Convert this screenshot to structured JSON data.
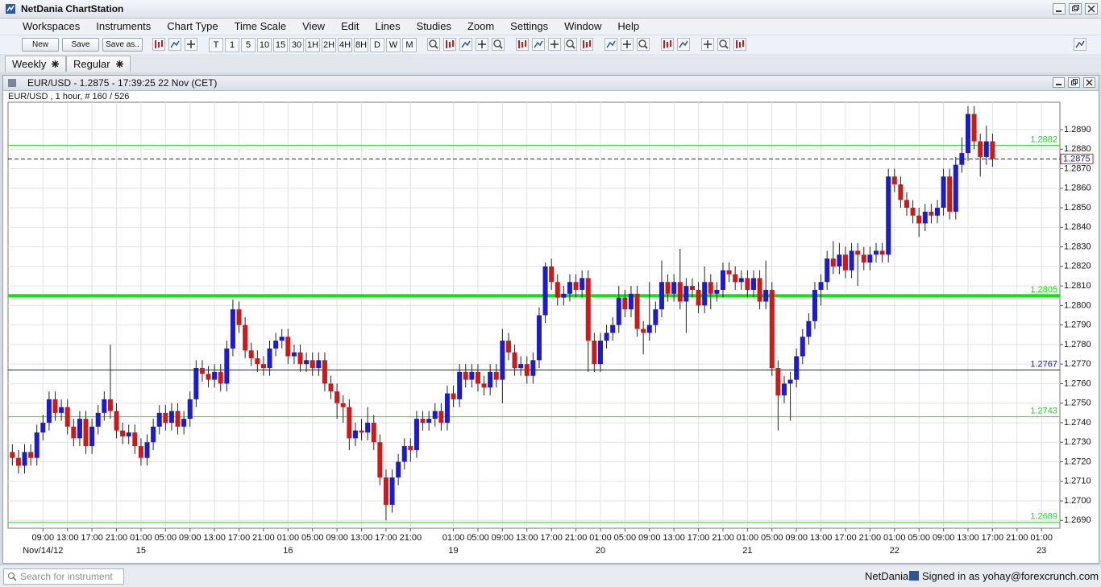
{
  "window": {
    "title": "NetDania ChartStation"
  },
  "menu": [
    "Workspaces",
    "Instruments",
    "Chart Type",
    "Time Scale",
    "View",
    "Edit",
    "Lines",
    "Studies",
    "Zoom",
    "Settings",
    "Window",
    "Help"
  ],
  "toolbar": {
    "buttons": [
      "New",
      "Save",
      "Save as.."
    ],
    "periods": [
      "T",
      "1",
      "5",
      "10",
      "15",
      "30",
      "1H",
      "2H",
      "4H",
      "8H",
      "D",
      "W",
      "M"
    ]
  },
  "tabs": [
    "Weekly",
    "Regular"
  ],
  "chart_window": {
    "title": "EUR/USD - 1.2875 - 17:39:25  22 Nov (CET)",
    "info": "EUR/USD , 1 hour, # 160 / 526"
  },
  "chart_data": {
    "type": "candlestick",
    "up_color": "#1c1cc8",
    "down_color": "#c81c1c",
    "grid": true,
    "open": [
      1.2725,
      1.2722,
      1.2718,
      1.2725,
      1.2722,
      1.2735,
      1.274,
      1.2752,
      1.2745,
      1.2748,
      1.2738,
      1.2732,
      1.2742,
      1.2728,
      1.2738,
      1.2745,
      1.2752,
      1.2746,
      1.2736,
      1.2733,
      1.2735,
      1.2728,
      1.2722,
      1.273,
      1.2738,
      1.2745,
      1.274,
      1.2746,
      1.2738,
      1.2742,
      1.2752,
      1.2768,
      1.2765,
      1.2762,
      1.2766,
      1.276,
      1.2778,
      1.2798,
      1.279,
      1.2777,
      1.2773,
      1.277,
      1.2768,
      1.2778,
      1.2782,
      1.2784,
      1.2774,
      1.2776,
      1.277,
      1.2772,
      1.2768,
      1.2772,
      1.276,
      1.2756,
      1.275,
      1.2748,
      1.2732,
      1.2736,
      1.2735,
      1.274,
      1.273,
      1.2712,
      1.2698,
      1.2712,
      1.272,
      1.2728,
      1.2726,
      1.2742,
      1.274,
      1.2742,
      1.2746,
      1.274,
      1.2755,
      1.2752,
      1.2766,
      1.2762,
      1.2766,
      1.276,
      1.2758,
      1.2766,
      1.2762,
      1.2782,
      1.2776,
      1.2768,
      1.277,
      1.2764,
      1.2772,
      1.2795,
      1.282,
      1.2812,
      1.2804,
      1.2806,
      1.2812,
      1.2808,
      1.2814,
      1.2782,
      1.277,
      1.2782,
      1.2786,
      1.279,
      1.2804,
      1.2798,
      1.2806,
      1.2788,
      1.2786,
      1.279,
      1.2798,
      1.2812,
      1.2806,
      1.2812,
      1.2802,
      1.281,
      1.2808,
      1.28,
      1.2812,
      1.2806,
      1.2808,
      1.2818,
      1.2816,
      1.2812,
      1.2814,
      1.2808,
      1.2814,
      1.2802,
      1.2808,
      1.2768,
      1.2754,
      1.276,
      1.2762,
      1.2774,
      1.2784,
      1.2792,
      1.2808,
      1.2812,
      1.2824,
      1.282,
      1.2826,
      1.2818,
      1.2828,
      1.2826,
      1.2822,
      1.2826,
      1.2828,
      1.2826,
      1.2866,
      1.2862,
      1.2854,
      1.285,
      1.2846,
      1.2842,
      1.2848,
      1.2846,
      1.285,
      1.2866,
      1.2848,
      1.2872,
      1.2878,
      1.2898,
      1.2884,
      1.2876,
      1.2884
    ],
    "high": [
      1.2729,
      1.2726,
      1.2729,
      1.2729,
      1.2739,
      1.2744,
      1.2756,
      1.2756,
      1.2752,
      1.2752,
      1.2742,
      1.2746,
      1.2746,
      1.2742,
      1.2749,
      1.2756,
      1.278,
      1.275,
      1.274,
      1.2739,
      1.2739,
      1.2732,
      1.2734,
      1.2742,
      1.2749,
      1.2749,
      1.275,
      1.275,
      1.2746,
      1.2756,
      1.2772,
      1.2772,
      1.2769,
      1.277,
      1.277,
      1.2782,
      1.2803,
      1.2802,
      1.2794,
      1.2781,
      1.2777,
      1.2774,
      1.2782,
      1.2786,
      1.2788,
      1.2788,
      1.278,
      1.278,
      1.2776,
      1.2776,
      1.2776,
      1.2776,
      1.2764,
      1.276,
      1.2754,
      1.2752,
      1.274,
      1.2742,
      1.2748,
      1.2744,
      1.2734,
      1.2716,
      1.2716,
      1.2724,
      1.2732,
      1.2732,
      1.2746,
      1.2746,
      1.2746,
      1.275,
      1.275,
      1.2759,
      1.2759,
      1.277,
      1.277,
      1.277,
      1.277,
      1.2764,
      1.277,
      1.277,
      1.2788,
      1.2786,
      1.278,
      1.2774,
      1.2774,
      1.2776,
      1.2799,
      1.2822,
      1.2824,
      1.2816,
      1.281,
      1.2816,
      1.2816,
      1.2818,
      1.2818,
      1.2786,
      1.2786,
      1.279,
      1.2794,
      1.281,
      1.2808,
      1.281,
      1.281,
      1.2792,
      1.2812,
      1.2802,
      1.2823,
      1.2816,
      1.2816,
      1.2829,
      1.2814,
      1.2814,
      1.2812,
      1.282,
      1.2816,
      1.2812,
      1.2822,
      1.2822,
      1.282,
      1.2818,
      1.2818,
      1.2818,
      1.2818,
      1.2823,
      1.2812,
      1.2772,
      1.2764,
      1.2766,
      1.2778,
      1.2788,
      1.2796,
      1.2812,
      1.2816,
      1.2828,
      1.2833,
      1.2832,
      1.283,
      1.2832,
      1.2832,
      1.283,
      1.283,
      1.2832,
      1.2832,
      1.287,
      1.287,
      1.2866,
      1.2858,
      1.2854,
      1.285,
      1.2852,
      1.2852,
      1.2854,
      1.287,
      1.287,
      1.2876,
      1.2886,
      1.2902,
      1.2902,
      1.2888,
      1.2892,
      1.2888
    ],
    "low": [
      1.2718,
      1.2714,
      1.2714,
      1.2718,
      1.2718,
      1.2731,
      1.2736,
      1.2741,
      1.2741,
      1.2734,
      1.2728,
      1.2728,
      1.2724,
      1.2724,
      1.2734,
      1.2741,
      1.2742,
      1.2732,
      1.2729,
      1.2729,
      1.2724,
      1.2718,
      1.2718,
      1.2726,
      1.2734,
      1.2736,
      1.2736,
      1.2734,
      1.2734,
      1.2738,
      1.2748,
      1.2761,
      1.2758,
      1.2758,
      1.2756,
      1.2756,
      1.2774,
      1.2786,
      1.2773,
      1.2769,
      1.2766,
      1.2764,
      1.2764,
      1.2774,
      1.2778,
      1.277,
      1.277,
      1.2766,
      1.2766,
      1.2764,
      1.2764,
      1.2756,
      1.2752,
      1.2742,
      1.274,
      1.2726,
      1.2728,
      1.2731,
      1.2731,
      1.2726,
      1.2708,
      1.269,
      1.2694,
      1.2708,
      1.2716,
      1.272,
      1.2722,
      1.2736,
      1.2736,
      1.2738,
      1.2736,
      1.2736,
      1.2748,
      1.2748,
      1.2758,
      1.2758,
      1.2756,
      1.2754,
      1.2754,
      1.2758,
      1.275,
      1.2772,
      1.2764,
      1.2764,
      1.276,
      1.276,
      1.2768,
      1.2791,
      1.2808,
      1.28,
      1.28,
      1.2802,
      1.2804,
      1.2804,
      1.2766,
      1.2766,
      1.2766,
      1.2778,
      1.2782,
      1.2786,
      1.2794,
      1.2794,
      1.2784,
      1.2775,
      1.2782,
      1.2786,
      1.2794,
      1.2802,
      1.2802,
      1.2798,
      1.2786,
      1.2804,
      1.2796,
      1.2796,
      1.2798,
      1.2802,
      1.2804,
      1.2812,
      1.2808,
      1.2808,
      1.2804,
      1.2804,
      1.2798,
      1.2798,
      1.2764,
      1.2736,
      1.275,
      1.2741,
      1.2758,
      1.277,
      1.278,
      1.2788,
      1.28,
      1.2808,
      1.2816,
      1.2816,
      1.2814,
      1.2814,
      1.281,
      1.2818,
      1.2818,
      1.2822,
      1.2822,
      1.2822,
      1.2858,
      1.285,
      1.2846,
      1.2842,
      1.2835,
      1.2838,
      1.2842,
      1.2842,
      1.2846,
      1.2844,
      1.2844,
      1.2868,
      1.2874,
      1.288,
      1.2866,
      1.2872,
      1.2871
    ],
    "close": [
      1.2722,
      1.2718,
      1.2725,
      1.2722,
      1.2735,
      1.274,
      1.2752,
      1.2745,
      1.2748,
      1.2738,
      1.2732,
      1.2742,
      1.2728,
      1.2738,
      1.2745,
      1.2752,
      1.2746,
      1.2736,
      1.2733,
      1.2735,
      1.2728,
      1.2722,
      1.273,
      1.2738,
      1.2745,
      1.274,
      1.2746,
      1.2738,
      1.2742,
      1.2752,
      1.2768,
      1.2765,
      1.2762,
      1.2766,
      1.276,
      1.2778,
      1.2798,
      1.279,
      1.2777,
      1.2773,
      1.277,
      1.2768,
      1.2778,
      1.2782,
      1.2784,
      1.2774,
      1.2776,
      1.277,
      1.2772,
      1.2768,
      1.2772,
      1.276,
      1.2756,
      1.275,
      1.2748,
      1.2732,
      1.2736,
      1.2735,
      1.274,
      1.273,
      1.2712,
      1.2698,
      1.2712,
      1.272,
      1.2728,
      1.2726,
      1.2742,
      1.274,
      1.2742,
      1.2746,
      1.274,
      1.2755,
      1.2752,
      1.2766,
      1.2762,
      1.2766,
      1.276,
      1.2758,
      1.2766,
      1.2762,
      1.2782,
      1.2776,
      1.2768,
      1.277,
      1.2764,
      1.2772,
      1.2795,
      1.282,
      1.2812,
      1.2804,
      1.2806,
      1.2812,
      1.2808,
      1.2814,
      1.2782,
      1.277,
      1.2782,
      1.2786,
      1.279,
      1.2804,
      1.2798,
      1.2806,
      1.2788,
      1.2786,
      1.279,
      1.2798,
      1.2812,
      1.2806,
      1.2812,
      1.2802,
      1.281,
      1.2808,
      1.28,
      1.2812,
      1.2806,
      1.2808,
      1.2818,
      1.2816,
      1.2812,
      1.2814,
      1.2808,
      1.2814,
      1.2802,
      1.2808,
      1.2768,
      1.2754,
      1.276,
      1.2762,
      1.2774,
      1.2784,
      1.2792,
      1.2808,
      1.2812,
      1.2824,
      1.282,
      1.2826,
      1.2818,
      1.2828,
      1.2826,
      1.2822,
      1.2826,
      1.2828,
      1.2826,
      1.2866,
      1.2862,
      1.2854,
      1.285,
      1.2846,
      1.2842,
      1.2848,
      1.2846,
      1.285,
      1.2866,
      1.2848,
      1.2872,
      1.2878,
      1.2898,
      1.2884,
      1.2876,
      1.2884,
      1.2875
    ],
    "xlim": [
      -0.7,
      171
    ],
    "xticks": [
      {
        "value": 5,
        "label": "09:00"
      },
      {
        "value": 9,
        "label": "13:00"
      },
      {
        "value": 13,
        "label": "17:00"
      },
      {
        "value": 17,
        "label": "21:00"
      },
      {
        "value": 21,
        "label": "01:00"
      },
      {
        "value": 25,
        "label": "05:00"
      },
      {
        "value": 29,
        "label": "09:00"
      },
      {
        "value": 33,
        "label": "13:00"
      },
      {
        "value": 37,
        "label": "17:00"
      },
      {
        "value": 41,
        "label": "21:00"
      },
      {
        "value": 45,
        "label": "01:00"
      },
      {
        "value": 49,
        "label": "05:00"
      },
      {
        "value": 53,
        "label": "09:00"
      },
      {
        "value": 57,
        "label": "13:00"
      },
      {
        "value": 61,
        "label": "17:00"
      },
      {
        "value": 65,
        "label": "21:00"
      },
      {
        "value": 72,
        "label": "01:00"
      },
      {
        "value": 76,
        "label": "05:00"
      },
      {
        "value": 80,
        "label": "09:00"
      },
      {
        "value": 84,
        "label": "13:00"
      },
      {
        "value": 88,
        "label": "17:00"
      },
      {
        "value": 92,
        "label": "21:00"
      },
      {
        "value": 96,
        "label": "01:00"
      },
      {
        "value": 100,
        "label": "05:00"
      },
      {
        "value": 104,
        "label": "09:00"
      },
      {
        "value": 108,
        "label": "13:00"
      },
      {
        "value": 112,
        "label": "17:00"
      },
      {
        "value": 116,
        "label": "21:00"
      },
      {
        "value": 120,
        "label": "01:00"
      },
      {
        "value": 124,
        "label": "05:00"
      },
      {
        "value": 128,
        "label": "09:00"
      },
      {
        "value": 132,
        "label": "13:00"
      },
      {
        "value": 136,
        "label": "17:00"
      },
      {
        "value": 140,
        "label": "21:00"
      },
      {
        "value": 144,
        "label": "01:00"
      },
      {
        "value": 148,
        "label": "05:00"
      },
      {
        "value": 152,
        "label": "09:00"
      },
      {
        "value": 156,
        "label": "13:00"
      },
      {
        "value": 160,
        "label": "17:00"
      },
      {
        "value": 164,
        "label": "21:00"
      },
      {
        "value": 168,
        "label": "01:00"
      }
    ],
    "date_ticks": [
      {
        "value": 5,
        "label": "Nov/14/12"
      },
      {
        "value": 21,
        "label": "15"
      },
      {
        "value": 45,
        "label": "16"
      },
      {
        "value": 72,
        "label": "19"
      },
      {
        "value": 96,
        "label": "20"
      },
      {
        "value": 120,
        "label": "21"
      },
      {
        "value": 144,
        "label": "22"
      },
      {
        "value": 168,
        "label": "23"
      }
    ],
    "ylim": [
      1.2686,
      1.2904
    ],
    "yticks": [
      {
        "value": 1.269,
        "label": "1.2690"
      },
      {
        "value": 1.27,
        "label": "1.2700"
      },
      {
        "value": 1.271,
        "label": "1.2710"
      },
      {
        "value": 1.272,
        "label": "1.2720"
      },
      {
        "value": 1.273,
        "label": "1.2730"
      },
      {
        "value": 1.274,
        "label": "1.2740"
      },
      {
        "value": 1.275,
        "label": "1.2750"
      },
      {
        "value": 1.276,
        "label": "1.2760"
      },
      {
        "value": 1.277,
        "label": "1.2770"
      },
      {
        "value": 1.278,
        "label": "1.2780"
      },
      {
        "value": 1.279,
        "label": "1.2790"
      },
      {
        "value": 1.28,
        "label": "1.2800"
      },
      {
        "value": 1.281,
        "label": "1.2810"
      },
      {
        "value": 1.282,
        "label": "1.2820"
      },
      {
        "value": 1.283,
        "label": "1.2830"
      },
      {
        "value": 1.284,
        "label": "1.2840"
      },
      {
        "value": 1.285,
        "label": "1.2850"
      },
      {
        "value": 1.286,
        "label": "1.2860"
      },
      {
        "value": 1.287,
        "label": "1.2870"
      },
      {
        "value": 1.288,
        "label": "1.2880"
      },
      {
        "value": 1.289,
        "label": "1.2890"
      }
    ],
    "lines": [
      {
        "value": 1.2882,
        "color": "#2ed12e",
        "width": 1
      },
      {
        "value": 1.2805,
        "color": "#14e014",
        "width": 4
      },
      {
        "value": 1.2767,
        "color": "#1a1aa8",
        "width": 1
      },
      {
        "value": 1.2743,
        "color": "#2ed12e",
        "width": 1
      },
      {
        "value": 1.2689,
        "color": "#2ed12e",
        "width": 1
      }
    ],
    "last_price": {
      "value": 1.2875,
      "color": "#1a1a80",
      "label_border": "#d02020"
    }
  },
  "status_bar": {
    "search_placeholder": "Search for instrument",
    "brand": "NetDania",
    "signed_in": "Signed in as yohay@forexcrunch.com"
  }
}
